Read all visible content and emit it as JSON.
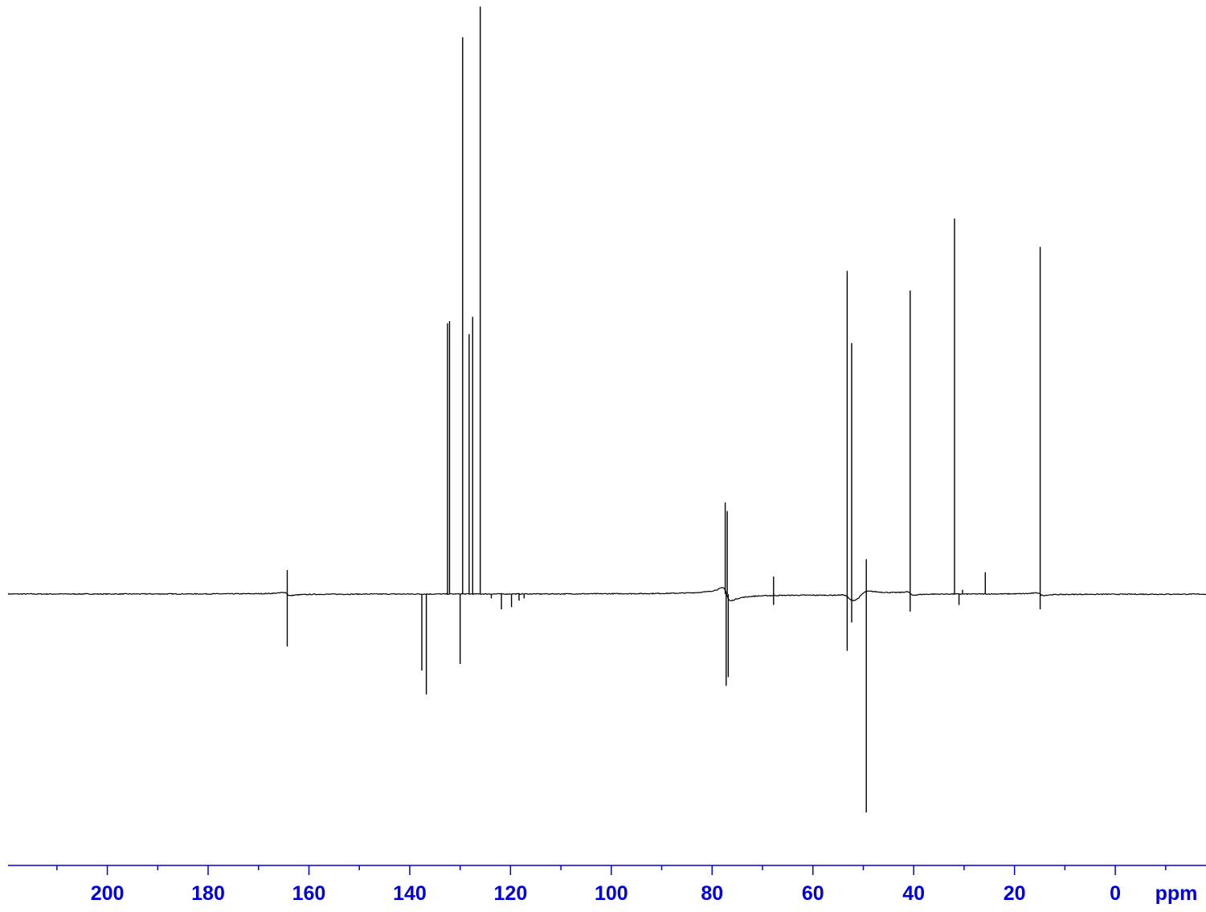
{
  "chart_data": {
    "type": "line",
    "title": "",
    "xlabel": "ppm",
    "ylabel": "",
    "x_reversed": true,
    "xlim": [
      219.7,
      -18.0
    ],
    "ylim": [
      -100,
      270
    ],
    "grid": false,
    "legend": "none",
    "baseline_y": 0,
    "axis_color": "#0000e0",
    "trace_color": "#000000",
    "x_ticks": [
      {
        "value": 200,
        "label": "200"
      },
      {
        "value": 180,
        "label": "180"
      },
      {
        "value": 160,
        "label": "160"
      },
      {
        "value": 140,
        "label": "140"
      },
      {
        "value": 120,
        "label": "120"
      },
      {
        "value": 100,
        "label": "100"
      },
      {
        "value": 80,
        "label": "80"
      },
      {
        "value": 60,
        "label": "60"
      },
      {
        "value": 40,
        "label": "40"
      },
      {
        "value": 20,
        "label": "20"
      },
      {
        "value": 0,
        "label": "0"
      }
    ],
    "minor_tick_step": 10,
    "peaks": [
      {
        "x": 164.3,
        "y": 11
      },
      {
        "x": 164.3,
        "y": -24
      },
      {
        "x": 137.6,
        "y": -35
      },
      {
        "x": 136.7,
        "y": -46
      },
      {
        "x": 132.5,
        "y": 124
      },
      {
        "x": 132.1,
        "y": 125
      },
      {
        "x": 130.0,
        "y": -32
      },
      {
        "x": 129.5,
        "y": 255
      },
      {
        "x": 128.2,
        "y": 119
      },
      {
        "x": 127.5,
        "y": 127
      },
      {
        "x": 126.0,
        "y": 269
      },
      {
        "x": 123.8,
        "y": -2
      },
      {
        "x": 121.8,
        "y": -7
      },
      {
        "x": 119.8,
        "y": -6
      },
      {
        "x": 118.3,
        "y": -3
      },
      {
        "x": 117.3,
        "y": -2
      },
      {
        "x": 77.4,
        "y": 42
      },
      {
        "x": 77.2,
        "y": -42
      },
      {
        "x": 77.0,
        "y": 38
      },
      {
        "x": 76.8,
        "y": -38
      },
      {
        "x": 67.8,
        "y": 8
      },
      {
        "x": 67.8,
        "y": -5
      },
      {
        "x": 53.2,
        "y": 148
      },
      {
        "x": 53.2,
        "y": -26
      },
      {
        "x": 52.3,
        "y": 115
      },
      {
        "x": 52.3,
        "y": -13
      },
      {
        "x": 49.4,
        "y": 16
      },
      {
        "x": 49.4,
        "y": -100
      },
      {
        "x": 40.7,
        "y": 139
      },
      {
        "x": 40.7,
        "y": -8
      },
      {
        "x": 31.9,
        "y": 172
      },
      {
        "x": 31.0,
        "y": -5
      },
      {
        "x": 30.3,
        "y": 2
      },
      {
        "x": 25.8,
        "y": 10
      },
      {
        "x": 14.9,
        "y": 159
      },
      {
        "x": 14.9,
        "y": -7
      }
    ],
    "dispersive": [
      {
        "x": 164.3,
        "amp": 1.5,
        "width": 0.6
      },
      {
        "x": 77.1,
        "amp": 6.0,
        "width": 0.8
      },
      {
        "x": 53.0,
        "amp": 2.0,
        "width": 0.9
      },
      {
        "x": 50.5,
        "amp": -3.5,
        "width": 1.5
      },
      {
        "x": 40.7,
        "amp": 1.5,
        "width": 0.6
      },
      {
        "x": 14.9,
        "amp": 1.2,
        "width": 0.6
      }
    ]
  }
}
